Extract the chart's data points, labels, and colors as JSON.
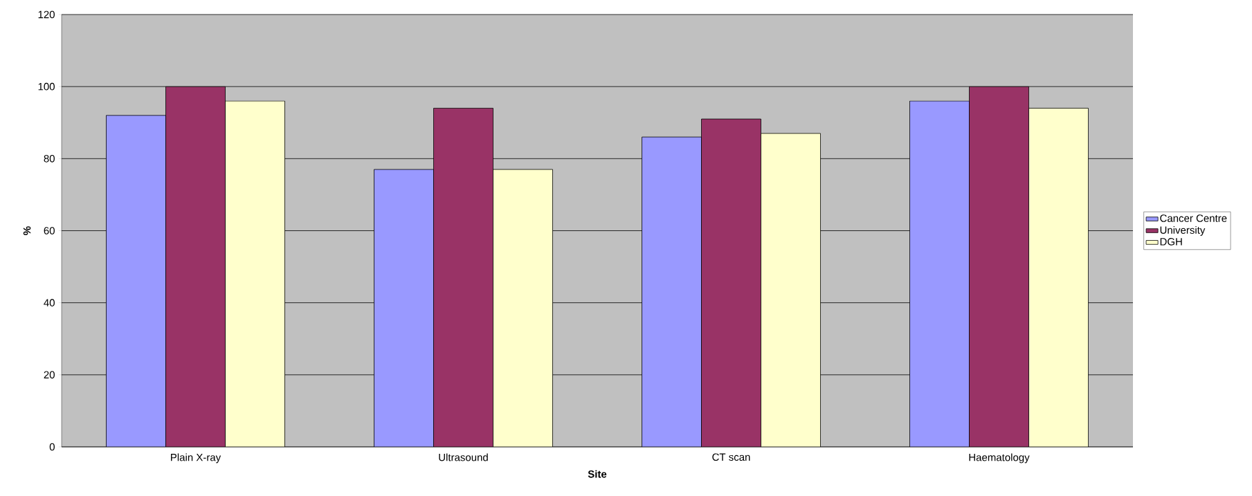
{
  "chart_data": {
    "type": "bar",
    "xlabel": "Site",
    "ylabel": "%",
    "categories": [
      "Plain X-ray",
      "Ultrasound",
      "CT scan",
      "Haematology"
    ],
    "series": [
      {
        "name": "Cancer Centre",
        "color": "#9999ff",
        "values": [
          92,
          77,
          86,
          96
        ]
      },
      {
        "name": "University",
        "color": "#993366",
        "values": [
          100,
          94,
          91,
          100
        ]
      },
      {
        "name": "DGH",
        "color": "#ffffcc",
        "values": [
          96,
          77,
          87,
          94
        ]
      }
    ],
    "ylim": [
      0,
      120
    ],
    "yticks": [
      0,
      20,
      40,
      60,
      80,
      100,
      120
    ],
    "grid": "y",
    "legend": "right"
  }
}
